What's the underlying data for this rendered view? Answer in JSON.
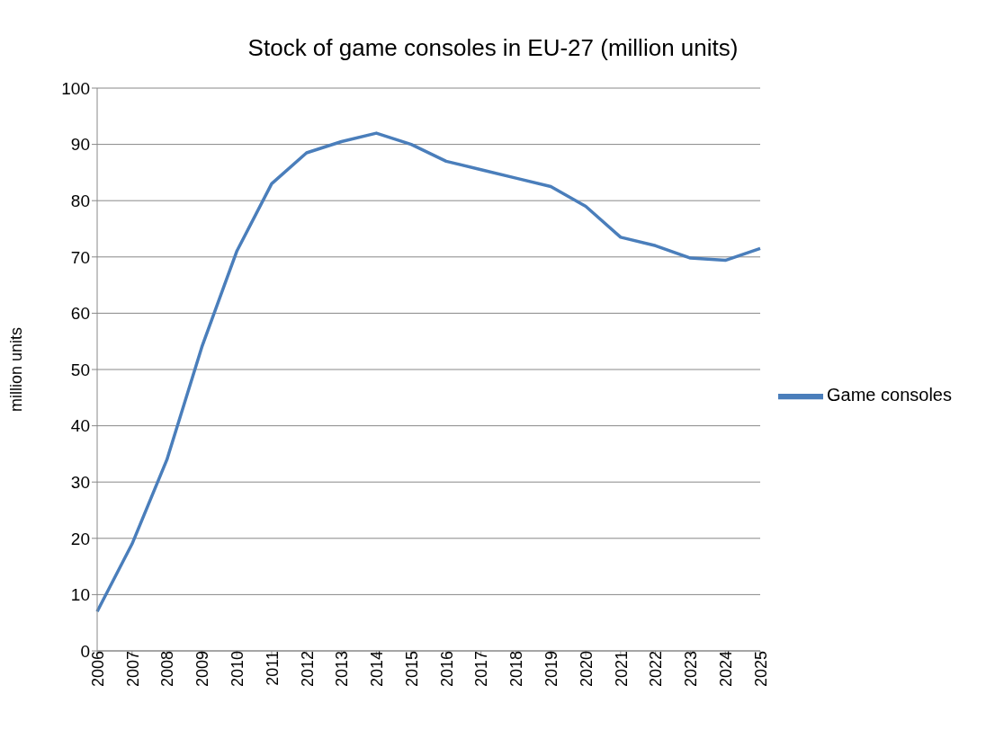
{
  "chart_data": {
    "type": "line",
    "title": "Stock of game consoles in EU-27 (million units)",
    "ylabel": "million units",
    "categories": [
      "2006",
      "2007",
      "2008",
      "2009",
      "2010",
      "2011",
      "2012",
      "2013",
      "2014",
      "2015",
      "2016",
      "2017",
      "2018",
      "2019",
      "2020",
      "2021",
      "2022",
      "2023",
      "2024",
      "2025"
    ],
    "series": [
      {
        "name": "Game consoles",
        "color": "#4a7ebb",
        "values": [
          7,
          19,
          34,
          54,
          71,
          83,
          88.5,
          90.5,
          92,
          90,
          87,
          85.5,
          84,
          82.5,
          79,
          73.5,
          72,
          69.8,
          69.4,
          71.5
        ]
      }
    ],
    "ylim": [
      0,
      100
    ],
    "yticks": [
      0,
      10,
      20,
      30,
      40,
      50,
      60,
      70,
      80,
      90,
      100
    ],
    "grid": "y",
    "legend": "right",
    "marker": "none",
    "line_style": "solid"
  }
}
